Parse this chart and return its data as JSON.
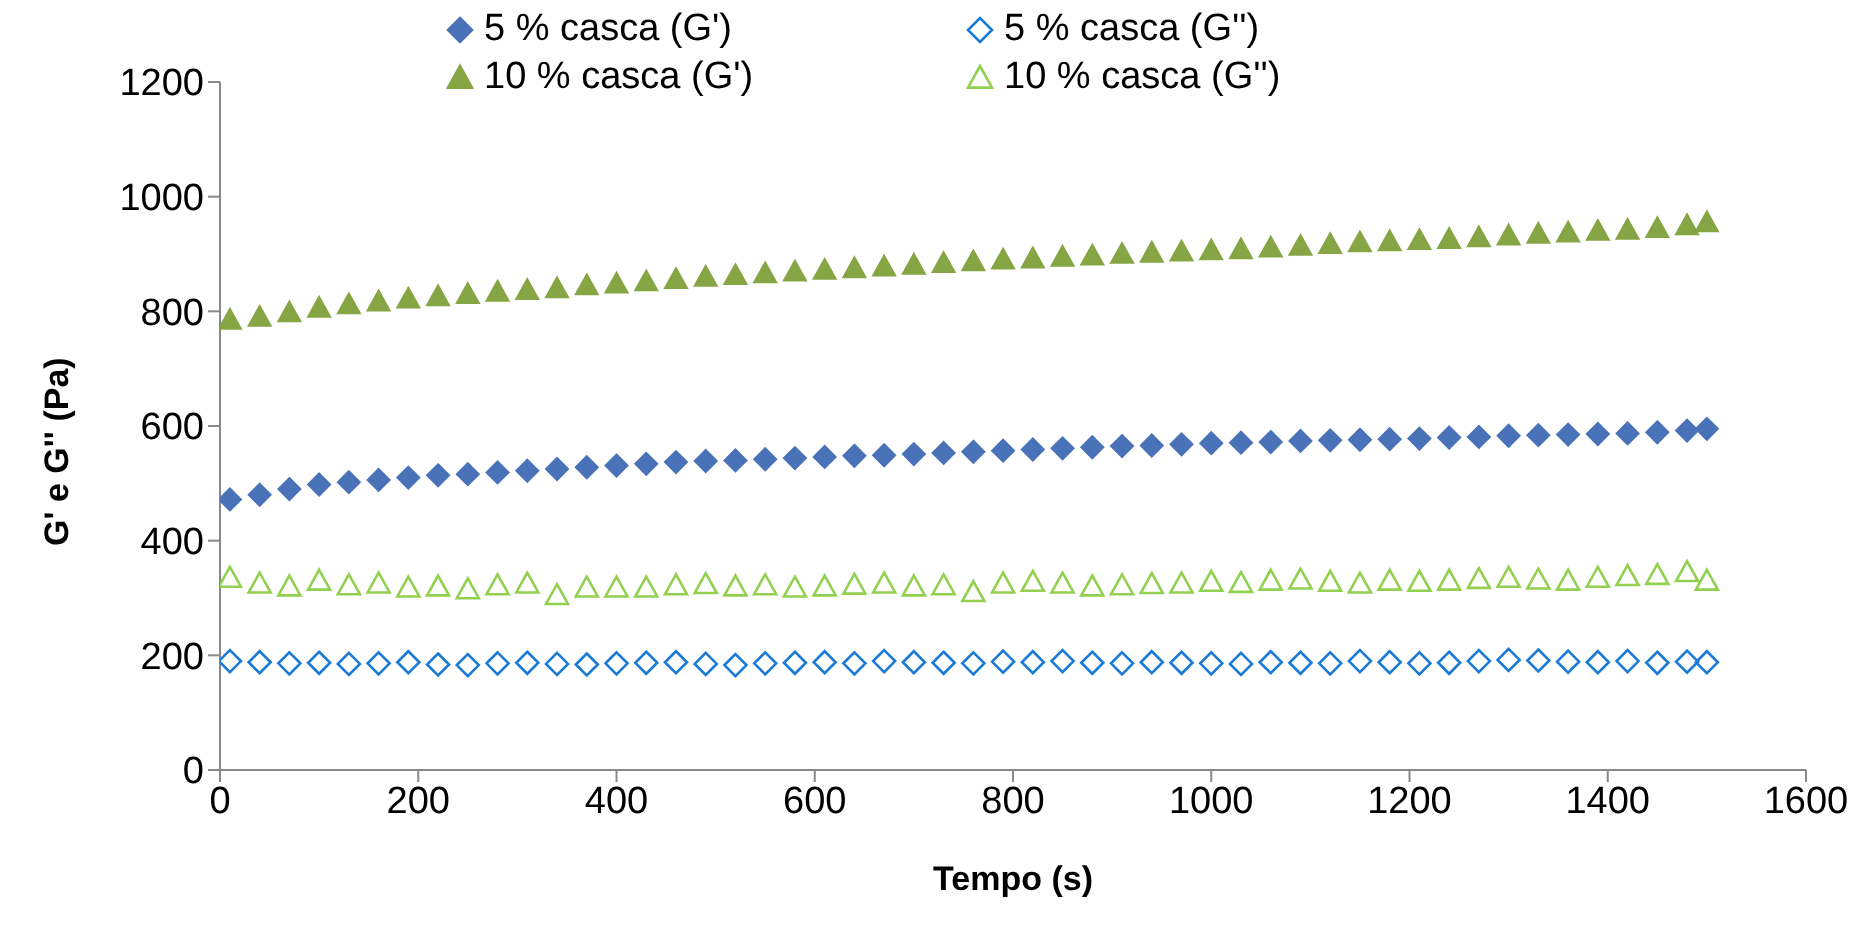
{
  "chart_data": {
    "type": "scatter",
    "xlabel": "Tempo (s)",
    "ylabel": "G' e G'' (Pa)",
    "x": [
      10,
      40,
      70,
      100,
      130,
      160,
      190,
      220,
      250,
      280,
      310,
      340,
      370,
      400,
      430,
      460,
      490,
      520,
      550,
      580,
      610,
      640,
      670,
      700,
      730,
      760,
      790,
      820,
      850,
      880,
      910,
      940,
      970,
      1000,
      1030,
      1060,
      1090,
      1120,
      1150,
      1180,
      1210,
      1240,
      1270,
      1300,
      1330,
      1360,
      1390,
      1420,
      1450,
      1480,
      1500
    ],
    "series": [
      {
        "name": "5 % casca (G')",
        "color": "#4a72b8",
        "marker": "diamond",
        "values": [
          472,
          480,
          490,
          498,
          502,
          506,
          510,
          514,
          516,
          519,
          522,
          525,
          528,
          531,
          534,
          537,
          539,
          540,
          542,
          544,
          546,
          548,
          549,
          551,
          553,
          555,
          557,
          559,
          561,
          563,
          565,
          566,
          568,
          570,
          571,
          572,
          574,
          575,
          576,
          577,
          578,
          580,
          581,
          583,
          584,
          585,
          586,
          587,
          589,
          592,
          595
        ]
      },
      {
        "name": "5 % casca (G'')",
        "color": "#1a7ad6",
        "marker": "diamond",
        "values": [
          190,
          188,
          186,
          187,
          185,
          186,
          188,
          184,
          183,
          186,
          187,
          185,
          184,
          186,
          187,
          188,
          185,
          183,
          186,
          187,
          188,
          186,
          190,
          188,
          187,
          186,
          189,
          188,
          190,
          187,
          186,
          188,
          187,
          186,
          185,
          188,
          187,
          186,
          190,
          188,
          186,
          187,
          190,
          192,
          191,
          189,
          188,
          190,
          187,
          189,
          188
        ]
      },
      {
        "name": "10 % casca (G')",
        "color": "#86a544",
        "marker": "triangle",
        "values": [
          785,
          790,
          798,
          806,
          812,
          817,
          822,
          826,
          830,
          834,
          837,
          840,
          845,
          848,
          852,
          856,
          860,
          863,
          866,
          869,
          872,
          875,
          878,
          881,
          884,
          887,
          890,
          892,
          895,
          897,
          900,
          902,
          904,
          906,
          908,
          911,
          914,
          917,
          920,
          922,
          924,
          926,
          929,
          932,
          935,
          937,
          940,
          942,
          945,
          950,
          955
        ]
      },
      {
        "name": "10 % casca (G'')",
        "color": "#92d050",
        "marker": "triangle",
        "values": [
          335,
          325,
          320,
          330,
          322,
          325,
          318,
          320,
          315,
          322,
          325,
          305,
          318,
          318,
          318,
          322,
          324,
          320,
          322,
          318,
          320,
          323,
          325,
          320,
          322,
          310,
          325,
          328,
          325,
          320,
          322,
          324,
          325,
          328,
          326,
          330,
          332,
          328,
          325,
          330,
          328,
          330,
          333,
          335,
          332,
          330,
          335,
          338,
          340,
          345,
          330
        ]
      }
    ],
    "xlim": [
      0,
      1600
    ],
    "xticks": [
      0,
      200,
      400,
      600,
      800,
      1000,
      1200,
      1400,
      1600
    ],
    "ylim": [
      0,
      1200
    ],
    "yticks": [
      0,
      200,
      400,
      600,
      800,
      1000,
      1200
    ],
    "grid": false,
    "legend": "top"
  }
}
